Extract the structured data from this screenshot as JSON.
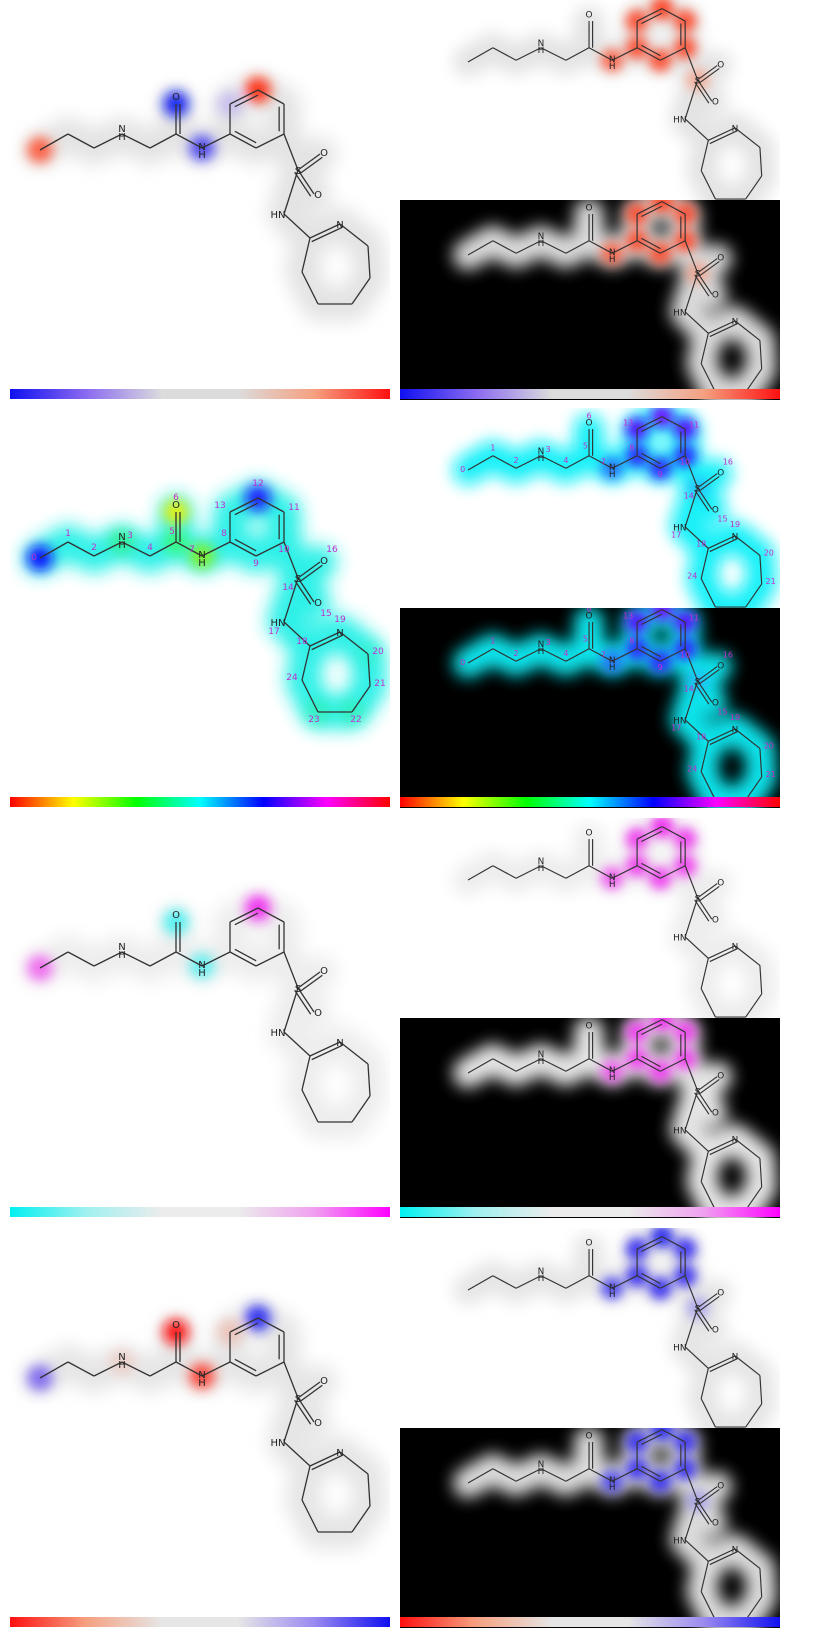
{
  "figure": {
    "atom_letters": {
      "nitrogen": "N",
      "oxygen": "O",
      "sulfur": "S",
      "amine": "H",
      "amide_h": "H",
      "sulfonamide": "HN"
    },
    "atom_numbers": [
      "0",
      "1",
      "2",
      "3",
      "4",
      "5",
      "6",
      "7",
      "8",
      "9",
      "10",
      "11",
      "12",
      "13",
      "14",
      "15",
      "16",
      "17",
      "18",
      "19",
      "20",
      "21",
      "22",
      "23",
      "24"
    ],
    "rows": [
      {
        "colormap": "blue-grey-red",
        "cbar_stops": [
          "#1010f0",
          "#8a6af0",
          "#dcdcdc",
          "#dcdcdc",
          "#f5a080",
          "#ff1010"
        ],
        "left": {
          "background": "white",
          "numbered": false,
          "halo_color": "#e2e2e2",
          "hotspots": [
            {
              "atom": 0,
              "color": "#ff4a2a",
              "strength": 0.85
            },
            {
              "atom": 6,
              "color": "#1020f0",
              "strength": 0.95
            },
            {
              "atom": 7,
              "color": "#3a34f0",
              "strength": 0.85
            },
            {
              "atom": 12,
              "color": "#ff2a10",
              "strength": 0.95
            },
            {
              "atom": 13,
              "color": "#b8a8f4",
              "strength": 0.6
            }
          ]
        },
        "right_top": {
          "background": "white",
          "numbered": false,
          "halo_color": "#e2e2e2",
          "hotspots": [
            {
              "atom": 7,
              "color": "#ff5030",
              "strength": 0.8
            },
            {
              "atom": 8,
              "color": "#ff4020",
              "strength": 0.85
            },
            {
              "atom": 9,
              "color": "#ff4020",
              "strength": 0.85
            },
            {
              "atom": 10,
              "color": "#ff4020",
              "strength": 0.85
            },
            {
              "atom": 11,
              "color": "#ff4020",
              "strength": 0.85
            },
            {
              "atom": 12,
              "color": "#ff3a18",
              "strength": 0.9
            },
            {
              "atom": 13,
              "color": "#ff4020",
              "strength": 0.85
            },
            {
              "atom": 14,
              "color": "#ff7a55",
              "strength": 0.5
            }
          ]
        },
        "right_bottom": {
          "background": "black",
          "numbered": false,
          "halo_color": "#e6e6e6",
          "hotspots": [
            {
              "atom": 7,
              "color": "#ff5030",
              "strength": 0.8
            },
            {
              "atom": 8,
              "color": "#ff4020",
              "strength": 0.85
            },
            {
              "atom": 9,
              "color": "#ff4020",
              "strength": 0.85
            },
            {
              "atom": 10,
              "color": "#ff4020",
              "strength": 0.85
            },
            {
              "atom": 11,
              "color": "#ff4020",
              "strength": 0.85
            },
            {
              "atom": 12,
              "color": "#ff3a18",
              "strength": 0.9
            },
            {
              "atom": 13,
              "color": "#ff4020",
              "strength": 0.85
            },
            {
              "atom": 14,
              "color": "#ff7a55",
              "strength": 0.5
            }
          ]
        }
      },
      {
        "colormap": "hsv",
        "cbar_stops": [
          "#ff0000",
          "#ffff00",
          "#00ff00",
          "#00ffff",
          "#0000ff",
          "#ff00ff",
          "#ff0000"
        ],
        "left": {
          "background": "white",
          "numbered": true,
          "halo_color": "#22f0e6",
          "hotspots": [
            {
              "atom": 0,
              "color": "#1010ff",
              "strength": 0.95
            },
            {
              "atom": 3,
              "color": "#30f070",
              "strength": 0.6
            },
            {
              "atom": 5,
              "color": "#40ff40",
              "strength": 0.6
            },
            {
              "atom": 6,
              "color": "#f0f000",
              "strength": 0.9
            },
            {
              "atom": 7,
              "color": "#90f000",
              "strength": 0.8
            },
            {
              "atom": 12,
              "color": "#2010ff",
              "strength": 0.9
            },
            {
              "atom": 22,
              "color": "#30f0a0",
              "strength": 0.5
            },
            {
              "atom": 23,
              "color": "#30f0a0",
              "strength": 0.5
            },
            {
              "atom": 20,
              "color": "#30f0c0",
              "strength": 0.4
            }
          ]
        },
        "right_top": {
          "background": "white",
          "numbered": true,
          "halo_color": "#10f0f8",
          "hotspots": [
            {
              "atom": 7,
              "color": "#2a60ff",
              "strength": 0.8
            },
            {
              "atom": 8,
              "color": "#3020ff",
              "strength": 0.9
            },
            {
              "atom": 9,
              "color": "#3020ff",
              "strength": 0.9
            },
            {
              "atom": 10,
              "color": "#3020ff",
              "strength": 0.9
            },
            {
              "atom": 11,
              "color": "#5a10ff",
              "strength": 0.95
            },
            {
              "atom": 12,
              "color": "#7010ff",
              "strength": 0.95
            },
            {
              "atom": 13,
              "color": "#5a10ff",
              "strength": 0.95
            },
            {
              "atom": 14,
              "color": "#30a0ff",
              "strength": 0.5
            }
          ]
        },
        "right_bottom": {
          "background": "black",
          "numbered": true,
          "halo_color": "#10f0f8",
          "hotspots": [
            {
              "atom": 7,
              "color": "#2a60ff",
              "strength": 0.8
            },
            {
              "atom": 8,
              "color": "#3020ff",
              "strength": 0.9
            },
            {
              "atom": 9,
              "color": "#3020ff",
              "strength": 0.9
            },
            {
              "atom": 10,
              "color": "#3020ff",
              "strength": 0.9
            },
            {
              "atom": 11,
              "color": "#5a10ff",
              "strength": 0.95
            },
            {
              "atom": 12,
              "color": "#7010ff",
              "strength": 0.95
            },
            {
              "atom": 13,
              "color": "#5a10ff",
              "strength": 0.95
            },
            {
              "atom": 14,
              "color": "#30a0ff",
              "strength": 0.5
            }
          ]
        }
      },
      {
        "colormap": "cyan-grey-magenta",
        "cbar_stops": [
          "#00f0f0",
          "#a0f0f0",
          "#ececec",
          "#ececec",
          "#f0a0f0",
          "#ff00ff"
        ],
        "left": {
          "background": "white",
          "numbered": false,
          "halo_color": "#ececec",
          "hotspots": [
            {
              "atom": 0,
              "color": "#f050f0",
              "strength": 0.8
            },
            {
              "atom": 6,
              "color": "#30f0f0",
              "strength": 0.8
            },
            {
              "atom": 7,
              "color": "#30f0f0",
              "strength": 0.7
            },
            {
              "atom": 12,
              "color": "#f020f0",
              "strength": 0.9
            }
          ]
        },
        "right_top": {
          "background": "white",
          "numbered": false,
          "halo_color": "#ececec",
          "hotspots": [
            {
              "atom": 7,
              "color": "#f040f0",
              "strength": 0.8
            },
            {
              "atom": 8,
              "color": "#f030f0",
              "strength": 0.85
            },
            {
              "atom": 9,
              "color": "#f030f0",
              "strength": 0.85
            },
            {
              "atom": 10,
              "color": "#f030f0",
              "strength": 0.85
            },
            {
              "atom": 11,
              "color": "#f030f0",
              "strength": 0.85
            },
            {
              "atom": 12,
              "color": "#f020f0",
              "strength": 0.9
            },
            {
              "atom": 13,
              "color": "#f030f0",
              "strength": 0.85
            }
          ]
        },
        "right_bottom": {
          "background": "black",
          "numbered": false,
          "halo_color": "#f2f2f2",
          "hotspots": [
            {
              "atom": 7,
              "color": "#f040f0",
              "strength": 0.8
            },
            {
              "atom": 8,
              "color": "#f030f0",
              "strength": 0.85
            },
            {
              "atom": 9,
              "color": "#f030f0",
              "strength": 0.85
            },
            {
              "atom": 10,
              "color": "#f030f0",
              "strength": 0.85
            },
            {
              "atom": 11,
              "color": "#f030f0",
              "strength": 0.85
            },
            {
              "atom": 12,
              "color": "#f020f0",
              "strength": 0.9
            },
            {
              "atom": 13,
              "color": "#f030f0",
              "strength": 0.85
            }
          ]
        }
      },
      {
        "colormap": "red-grey-blue",
        "cbar_stops": [
          "#ff1010",
          "#f5a080",
          "#e6e6e6",
          "#e6e6e6",
          "#9a8af0",
          "#1010f0"
        ],
        "left": {
          "background": "white",
          "numbered": false,
          "halo_color": "#e4e4e4",
          "hotspots": [
            {
              "atom": 0,
              "color": "#6a50f0",
              "strength": 0.8
            },
            {
              "atom": 3,
              "color": "#f4b0a0",
              "strength": 0.4
            },
            {
              "atom": 6,
              "color": "#ff1010",
              "strength": 0.95
            },
            {
              "atom": 7,
              "color": "#ff3020",
              "strength": 0.85
            },
            {
              "atom": 12,
              "color": "#2020f0",
              "strength": 0.9
            },
            {
              "atom": 13,
              "color": "#f0a090",
              "strength": 0.5
            }
          ]
        },
        "right_top": {
          "background": "white",
          "numbered": false,
          "halo_color": "#e4e4e4",
          "hotspots": [
            {
              "atom": 7,
              "color": "#3a30f0",
              "strength": 0.8
            },
            {
              "atom": 8,
              "color": "#2a20f0",
              "strength": 0.85
            },
            {
              "atom": 9,
              "color": "#2a20f0",
              "strength": 0.85
            },
            {
              "atom": 10,
              "color": "#2a20f0",
              "strength": 0.85
            },
            {
              "atom": 11,
              "color": "#2a20f0",
              "strength": 0.85
            },
            {
              "atom": 12,
              "color": "#2020f0",
              "strength": 0.9
            },
            {
              "atom": 13,
              "color": "#2a20f0",
              "strength": 0.85
            },
            {
              "atom": 14,
              "color": "#7a70f0",
              "strength": 0.5
            }
          ]
        },
        "right_bottom": {
          "background": "black",
          "numbered": false,
          "halo_color": "#e8e8e8",
          "hotspots": [
            {
              "atom": 7,
              "color": "#3a30f0",
              "strength": 0.8
            },
            {
              "atom": 8,
              "color": "#2a20f0",
              "strength": 0.85
            },
            {
              "atom": 9,
              "color": "#2a20f0",
              "strength": 0.85
            },
            {
              "atom": 10,
              "color": "#2a20f0",
              "strength": 0.85
            },
            {
              "atom": 11,
              "color": "#2a20f0",
              "strength": 0.85
            },
            {
              "atom": 12,
              "color": "#2020f0",
              "strength": 0.9
            },
            {
              "atom": 13,
              "color": "#2a20f0",
              "strength": 0.85
            },
            {
              "atom": 14,
              "color": "#7a70f0",
              "strength": 0.5
            }
          ]
        }
      }
    ]
  }
}
